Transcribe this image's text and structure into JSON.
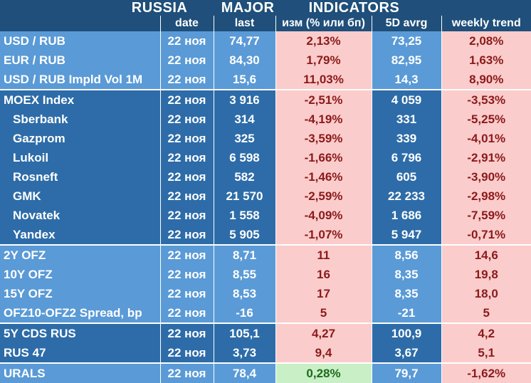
{
  "title": "RUSSIA   MAJOR   INDICATORS",
  "headers": {
    "name": "",
    "date": "date",
    "last": "last",
    "change": "изм (% или бп)",
    "avg5d": "5D avrg",
    "weekly": "weekly trend"
  },
  "rows": [
    {
      "name": "USD / RUB",
      "date": "22 ноя",
      "last": "74,77",
      "change": "2,13%",
      "avg5d": "73,25",
      "weekly": "2,08%"
    },
    {
      "name": "EUR / RUB",
      "date": "22 ноя",
      "last": "84,30",
      "change": "1,79%",
      "avg5d": "82,95",
      "weekly": "1,63%"
    },
    {
      "name": "USD / RUB Impld Vol 1M",
      "date": "22 ноя",
      "last": "15,6",
      "change": "11,03%",
      "avg5d": "14,3",
      "weekly": "8,90%"
    },
    {
      "name": "MOEX Index",
      "date": "22 ноя",
      "last": "3 916",
      "change": "-2,51%",
      "avg5d": "4 059",
      "weekly": "-3,53%"
    },
    {
      "name": "Sberbank",
      "date": "22 ноя",
      "last": "314",
      "change": "-4,19%",
      "avg5d": "331",
      "weekly": "-5,25%"
    },
    {
      "name": "Gazprom",
      "date": "22 ноя",
      "last": "325",
      "change": "-3,59%",
      "avg5d": "339",
      "weekly": "-4,01%"
    },
    {
      "name": "Lukoil",
      "date": "22 ноя",
      "last": "6 598",
      "change": "-1,66%",
      "avg5d": "6 796",
      "weekly": "-2,91%"
    },
    {
      "name": "Rosneft",
      "date": "22 ноя",
      "last": "582",
      "change": "-1,46%",
      "avg5d": "605",
      "weekly": "-3,90%"
    },
    {
      "name": "GMK",
      "date": "22 ноя",
      "last": "21 570",
      "change": "-2,59%",
      "avg5d": "22 233",
      "weekly": "-2,98%"
    },
    {
      "name": "Novatek",
      "date": "22 ноя",
      "last": "1 558",
      "change": "-4,09%",
      "avg5d": "1 686",
      "weekly": "-7,59%"
    },
    {
      "name": "Yandex",
      "date": "22 ноя",
      "last": "5 905",
      "change": "-1,07%",
      "avg5d": "5 947",
      "weekly": "-0,71%"
    },
    {
      "name": "2Y OFZ",
      "date": "22 ноя",
      "last": "8,71",
      "change": "11",
      "avg5d": "8,56",
      "weekly": "14,6"
    },
    {
      "name": "10Y OFZ",
      "date": "22 ноя",
      "last": "8,55",
      "change": "16",
      "avg5d": "8,35",
      "weekly": "19,8"
    },
    {
      "name": "15Y OFZ",
      "date": "22 ноя",
      "last": "8,53",
      "change": "17",
      "avg5d": "8,35",
      "weekly": "18,0"
    },
    {
      "name": "OFZ10-OFZ2 Spread, bp",
      "date": "22 ноя",
      "last": "-16",
      "change": "5",
      "avg5d": "-21",
      "weekly": "5"
    },
    {
      "name": "5Y CDS RUS",
      "date": "22 ноя",
      "last": "105,1",
      "change": "4,27",
      "avg5d": "100,9",
      "weekly": "4,2"
    },
    {
      "name": "RUS 47",
      "date": "22 ноя",
      "last": "3,73",
      "change": "9,4",
      "avg5d": "3,67",
      "weekly": "5,1"
    },
    {
      "name": "URALS",
      "date": "22 ноя",
      "last": "78,4",
      "change": "0,28%",
      "avg5d": "79,7",
      "weekly": "-1,62%"
    }
  ],
  "colors": {
    "background": "#1f4f7a",
    "light_blue": "#5a9ad6",
    "dark_blue": "#2d6ca8",
    "pink": "#fbcccc",
    "green": "#c9efc6",
    "negative_text": "#8b1a1a",
    "positive_text": "#1d6a1d"
  }
}
